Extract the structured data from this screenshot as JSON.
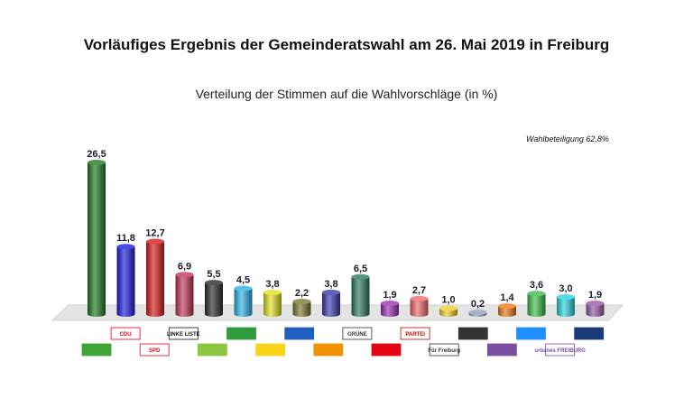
{
  "title": "Vorläufiges Ergebnis der Gemeinderatswahl am 26. Mai 2019 in Freiburg",
  "subtitle": "Verteilung der Stimmen auf die Wahlvorschläge (in %)",
  "turnout": "Wahlbeteiligung 62,8%",
  "chart_data": {
    "type": "bar",
    "values": [
      26.5,
      11.8,
      12.7,
      6.9,
      5.5,
      4.5,
      3.8,
      2.2,
      3.8,
      6.5,
      1.9,
      2.7,
      1.0,
      0.2,
      1.4,
      3.6,
      3.0,
      1.9
    ],
    "value_labels": [
      "26,5",
      "11,8",
      "12,7",
      "6,9",
      "5,5",
      "4,5",
      "3,8",
      "2,2",
      "3,8",
      "6,5",
      "1,9",
      "2,7",
      "1,0",
      "0,2",
      "1,4",
      "3,6",
      "3,0",
      "1,9"
    ],
    "colors": [
      "#1f7a1f",
      "#1d1de0",
      "#d81c1c",
      "#c4345a",
      "#2b2b2b",
      "#2bb3e6",
      "#e5e021",
      "#7a7a30",
      "#3a3ab0",
      "#2e7a60",
      "#9b2fb3",
      "#ef6a6a",
      "#f2cc2a",
      "#8fa0bf",
      "#f07a16",
      "#3ebd4a",
      "#2ad4e0",
      "#9a5aa8"
    ],
    "ylim": [
      0,
      28
    ]
  },
  "logos": [
    {
      "text": "",
      "color": "#3fa535",
      "row": 2
    },
    {
      "text": "CDU",
      "color": "#e2001a",
      "row": 1
    },
    {
      "text": "SPD",
      "color": "#e2001a",
      "row": 2
    },
    {
      "text": "LINKE LISTE",
      "color": "#111111",
      "row": 1
    },
    {
      "text": "",
      "color": "#8cc63f",
      "row": 2
    },
    {
      "text": "",
      "color": "#2e9c3a",
      "row": 1
    },
    {
      "text": "",
      "color": "#f7d417",
      "row": 2
    },
    {
      "text": "",
      "color": "#1f5fbf",
      "row": 1
    },
    {
      "text": "",
      "color": "#f39200",
      "row": 2
    },
    {
      "text": "GRÜNE",
      "color": "#333333",
      "row": 1
    },
    {
      "text": "",
      "color": "#e30613",
      "row": 2
    },
    {
      "text": "PARTEI",
      "color": "#c00000",
      "row": 1
    },
    {
      "text": "Für Freiburg",
      "color": "#333333",
      "row": 2
    },
    {
      "text": "",
      "color": "#333333",
      "row": 1
    },
    {
      "text": "",
      "color": "#7a4fa0",
      "row": 2
    },
    {
      "text": "",
      "color": "#1e90ff",
      "row": 1
    },
    {
      "text": "urbanes FREIBURG",
      "color": "#7a4fa0",
      "row": 2
    },
    {
      "text": "",
      "color": "#1a3a7a",
      "row": 1
    }
  ]
}
